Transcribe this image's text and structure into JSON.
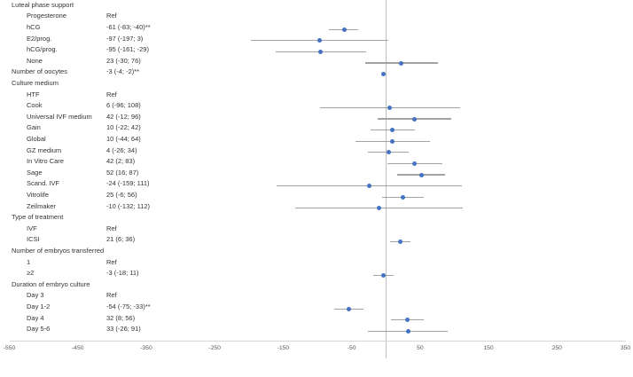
{
  "chart_data": {
    "type": "scatter",
    "subtype": "forest-plot",
    "title": "",
    "xlabel": "",
    "ylabel": "",
    "xlim": [
      -550,
      350
    ],
    "x_ticks": [
      -550,
      -450,
      -350,
      -250,
      -150,
      -50,
      50,
      150,
      250,
      350
    ],
    "grid": "off",
    "legend": "none",
    "reference_line_x": 0,
    "colors": {
      "marker": "#4472c4",
      "ci_line": "#a3a3a3",
      "zero_line": "#bfbfbf",
      "axis_line": "#d6d6d6",
      "text": "#333333",
      "tick_text": "#595959"
    },
    "rows": [
      {
        "label": "Luteal phase support",
        "indent": 0,
        "value": "",
        "est": null,
        "lo": null,
        "hi": null
      },
      {
        "label": "Progesterone",
        "indent": 1,
        "value": "Ref",
        "est": null,
        "lo": null,
        "hi": null
      },
      {
        "label": "hCG",
        "indent": 1,
        "value": "-61 (-83; -40)**",
        "est": -61,
        "lo": -83,
        "hi": -40
      },
      {
        "label": "E2/prog.",
        "indent": 1,
        "value": "-97 (-197; 3)",
        "est": -97,
        "lo": -197,
        "hi": 3
      },
      {
        "label": "hCG/prog.",
        "indent": 1,
        "value": "-95 (-161; -29)",
        "est": -95,
        "lo": -161,
        "hi": -29
      },
      {
        "label": "None",
        "indent": 1,
        "value": "23 (-30; 76)",
        "est": 23,
        "lo": -30,
        "hi": 76
      },
      {
        "label": "Number of oocytes",
        "indent": 0,
        "value": "-3 (-4; -2)**",
        "est": -3,
        "lo": -4,
        "hi": -2
      },
      {
        "label": "Culture medium",
        "indent": 0,
        "value": "",
        "est": null,
        "lo": null,
        "hi": null
      },
      {
        "label": "HTF",
        "indent": 1,
        "value": "Ref",
        "est": null,
        "lo": null,
        "hi": null
      },
      {
        "label": "Cook",
        "indent": 1,
        "value": "6 (-96; 108)",
        "est": 6,
        "lo": -96,
        "hi": 108
      },
      {
        "label": "Universal IVF medium",
        "indent": 1,
        "value": "42 (-12; 96)",
        "est": 42,
        "lo": -12,
        "hi": 96
      },
      {
        "label": "Gain",
        "indent": 1,
        "value": "10 (-22; 42)",
        "est": 10,
        "lo": -22,
        "hi": 42
      },
      {
        "label": "Global",
        "indent": 1,
        "value": "10 (-44; 64)",
        "est": 10,
        "lo": -44,
        "hi": 64
      },
      {
        "label": "GZ medium",
        "indent": 1,
        "value": "4 (-26; 34)",
        "est": 4,
        "lo": -26,
        "hi": 34
      },
      {
        "label": "In Vitro Care",
        "indent": 1,
        "value": "42 (2; 83)",
        "est": 42,
        "lo": 2,
        "hi": 83
      },
      {
        "label": "Sage",
        "indent": 1,
        "value": "52 (16; 87)",
        "est": 52,
        "lo": 16,
        "hi": 87
      },
      {
        "label": "Scand. IVF",
        "indent": 1,
        "value": "-24 (-159; 111)",
        "est": -24,
        "lo": -159,
        "hi": 111
      },
      {
        "label": "Vitrolife",
        "indent": 1,
        "value": "25 (-6; 56)",
        "est": 25,
        "lo": -6,
        "hi": 56
      },
      {
        "label": "Zeilmaker",
        "indent": 1,
        "value": "-10 (-132; 112)",
        "est": -10,
        "lo": -132,
        "hi": 112
      },
      {
        "label": "Type of treatment",
        "indent": 0,
        "value": "",
        "est": null,
        "lo": null,
        "hi": null
      },
      {
        "label": "IVF",
        "indent": 1,
        "value": "Ref",
        "est": null,
        "lo": null,
        "hi": null
      },
      {
        "label": "ICSI",
        "indent": 1,
        "value": "21 (6; 36)",
        "est": 21,
        "lo": 6,
        "hi": 36
      },
      {
        "label": "Number of embryos transferred",
        "indent": 0,
        "value": "",
        "est": null,
        "lo": null,
        "hi": null
      },
      {
        "label": "1",
        "indent": 1,
        "value": "Ref",
        "est": null,
        "lo": null,
        "hi": null
      },
      {
        "label": "≥2",
        "indent": 1,
        "value": "-3 (-18; 11)",
        "est": -3,
        "lo": -18,
        "hi": 11
      },
      {
        "label": "Duration of embryo culture",
        "indent": 0,
        "value": "",
        "est": null,
        "lo": null,
        "hi": null
      },
      {
        "label": "Day 3",
        "indent": 1,
        "value": "Ref",
        "est": null,
        "lo": null,
        "hi": null
      },
      {
        "label": "Day 1-2",
        "indent": 1,
        "value": "-54 (-75; -33)**",
        "est": -54,
        "lo": -75,
        "hi": -33
      },
      {
        "label": "Day 4",
        "indent": 1,
        "value": "32 (8; 56)",
        "est": 32,
        "lo": 8,
        "hi": 56
      },
      {
        "label": "Day 5-6",
        "indent": 1,
        "value": "33 (-26; 91)",
        "est": 33,
        "lo": -26,
        "hi": 91
      }
    ]
  }
}
